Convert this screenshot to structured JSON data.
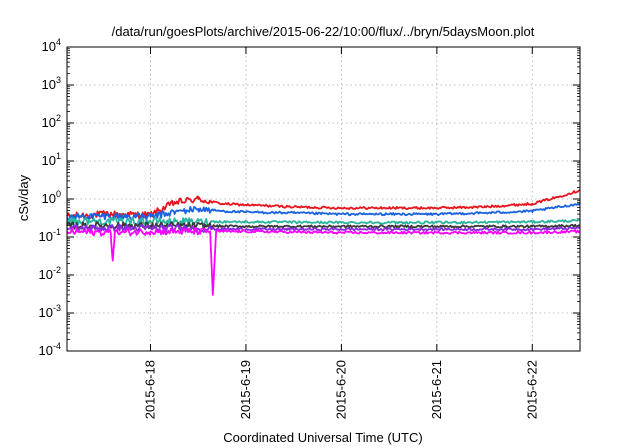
{
  "chart_data": {
    "type": "line",
    "title": "/data/run/goesPlots/archive/2015-06-22/10:00/flux/../bryn/5daysMoon.plot",
    "xlabel": "Coordinated Universal Time (UTC)",
    "ylabel": "cSv/day",
    "x_range": [
      "2015-06-17T03:00",
      "2015-06-22T12:00"
    ],
    "x_ticks": [
      "2015-6-18",
      "2015-6-19",
      "2015-6-20",
      "2015-6-21",
      "2015-6-22"
    ],
    "y_scale": "log",
    "ylim": [
      0.0001,
      10000
    ],
    "y_ticks": [
      {
        "mant": "10",
        "exp": "4"
      },
      {
        "mant": "10",
        "exp": "3"
      },
      {
        "mant": "10",
        "exp": "2"
      },
      {
        "mant": "10",
        "exp": "1"
      },
      {
        "mant": "10",
        "exp": "0"
      },
      {
        "mant": "10",
        "exp": "-1"
      },
      {
        "mant": "10",
        "exp": "-2"
      },
      {
        "mant": "10",
        "exp": "-3"
      },
      {
        "mant": "10",
        "exp": "-4"
      }
    ],
    "grid": true,
    "legend": "none",
    "series": [
      {
        "color": "#e8141c",
        "points": [
          [
            "2015-06-17T03:00",
            0.35
          ],
          [
            "2015-06-17T12:00",
            0.4
          ],
          [
            "2015-06-18T00:00",
            0.38
          ],
          [
            "2015-06-18T06:00",
            0.8
          ],
          [
            "2015-06-18T12:00",
            1.0
          ],
          [
            "2015-06-18T15:00",
            0.85
          ],
          [
            "2015-06-18T18:00",
            0.75
          ],
          [
            "2015-06-19T00:00",
            0.7
          ],
          [
            "2015-06-19T12:00",
            0.62
          ],
          [
            "2015-06-20T00:00",
            0.58
          ],
          [
            "2015-06-20T12:00",
            0.58
          ],
          [
            "2015-06-21T00:00",
            0.58
          ],
          [
            "2015-06-21T12:00",
            0.62
          ],
          [
            "2015-06-22T00:00",
            0.75
          ],
          [
            "2015-06-22T06:00",
            1.1
          ],
          [
            "2015-06-22T12:00",
            1.7
          ]
        ]
      },
      {
        "color": "#1a62e0",
        "points": [
          [
            "2015-06-17T03:00",
            0.33
          ],
          [
            "2015-06-17T12:00",
            0.36
          ],
          [
            "2015-06-18T00:00",
            0.34
          ],
          [
            "2015-06-18T06:00",
            0.45
          ],
          [
            "2015-06-18T12:00",
            0.55
          ],
          [
            "2015-06-18T18:00",
            0.48
          ],
          [
            "2015-06-19T00:00",
            0.45
          ],
          [
            "2015-06-19T12:00",
            0.43
          ],
          [
            "2015-06-20T00:00",
            0.4
          ],
          [
            "2015-06-20T12:00",
            0.4
          ],
          [
            "2015-06-21T00:00",
            0.4
          ],
          [
            "2015-06-21T12:00",
            0.43
          ],
          [
            "2015-06-22T00:00",
            0.48
          ],
          [
            "2015-06-22T12:00",
            0.75
          ]
        ]
      },
      {
        "color": "#2ab5a0",
        "points": [
          [
            "2015-06-17T03:00",
            0.26
          ],
          [
            "2015-06-18T00:00",
            0.26
          ],
          [
            "2015-06-19T00:00",
            0.25
          ],
          [
            "2015-06-20T00:00",
            0.24
          ],
          [
            "2015-06-21T00:00",
            0.24
          ],
          [
            "2015-06-22T00:00",
            0.25
          ],
          [
            "2015-06-22T12:00",
            0.27
          ]
        ]
      },
      {
        "color": "#3a3a3a",
        "points": [
          [
            "2015-06-17T03:00",
            0.2
          ],
          [
            "2015-06-18T00:00",
            0.2
          ],
          [
            "2015-06-19T00:00",
            0.19
          ],
          [
            "2015-06-20T00:00",
            0.19
          ],
          [
            "2015-06-21T00:00",
            0.19
          ],
          [
            "2015-06-22T00:00",
            0.19
          ],
          [
            "2015-06-22T12:00",
            0.2
          ]
        ]
      },
      {
        "color": "#8a2be2",
        "points": [
          [
            "2015-06-17T03:00",
            0.17
          ],
          [
            "2015-06-18T00:00",
            0.17
          ],
          [
            "2015-06-19T00:00",
            0.16
          ],
          [
            "2015-06-20T00:00",
            0.16
          ],
          [
            "2015-06-21T00:00",
            0.16
          ],
          [
            "2015-06-22T00:00",
            0.16
          ],
          [
            "2015-06-22T12:00",
            0.17
          ]
        ]
      },
      {
        "color": "#ff00ff",
        "points": [
          [
            "2015-06-17T03:00",
            0.14
          ],
          [
            "2015-06-17T14:00",
            0.13
          ],
          [
            "2015-06-17T14:30",
            0.024
          ],
          [
            "2015-06-17T15:00",
            0.13
          ],
          [
            "2015-06-18T00:00",
            0.14
          ],
          [
            "2015-06-18T15:00",
            0.14
          ],
          [
            "2015-06-18T15:40",
            0.003
          ],
          [
            "2015-06-18T16:30",
            0.14
          ],
          [
            "2015-06-19T00:00",
            0.14
          ],
          [
            "2015-06-20T00:00",
            0.13
          ],
          [
            "2015-06-21T00:00",
            0.13
          ],
          [
            "2015-06-22T00:00",
            0.13
          ],
          [
            "2015-06-22T12:00",
            0.14
          ]
        ]
      }
    ]
  }
}
